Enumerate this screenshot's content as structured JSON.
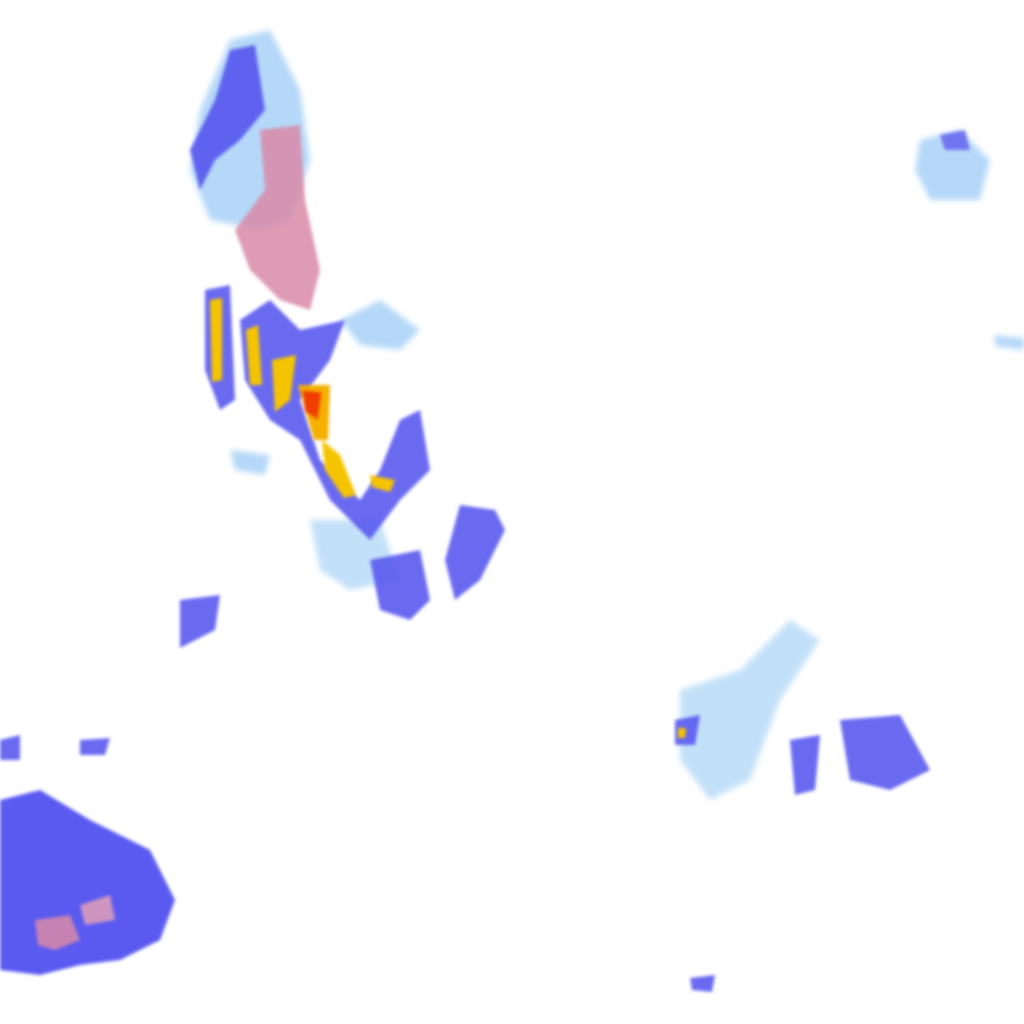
{
  "map": {
    "type": "precipitation-radar-tile",
    "background": "#ffffff",
    "colors": {
      "light_rain": "#9ecbf5",
      "moderate_rain": "#4a4af0",
      "heavy_rain": "#f5c400",
      "very_heavy_rain": "#f03c00",
      "mixed_precipitation": "#d98aa8"
    }
  }
}
